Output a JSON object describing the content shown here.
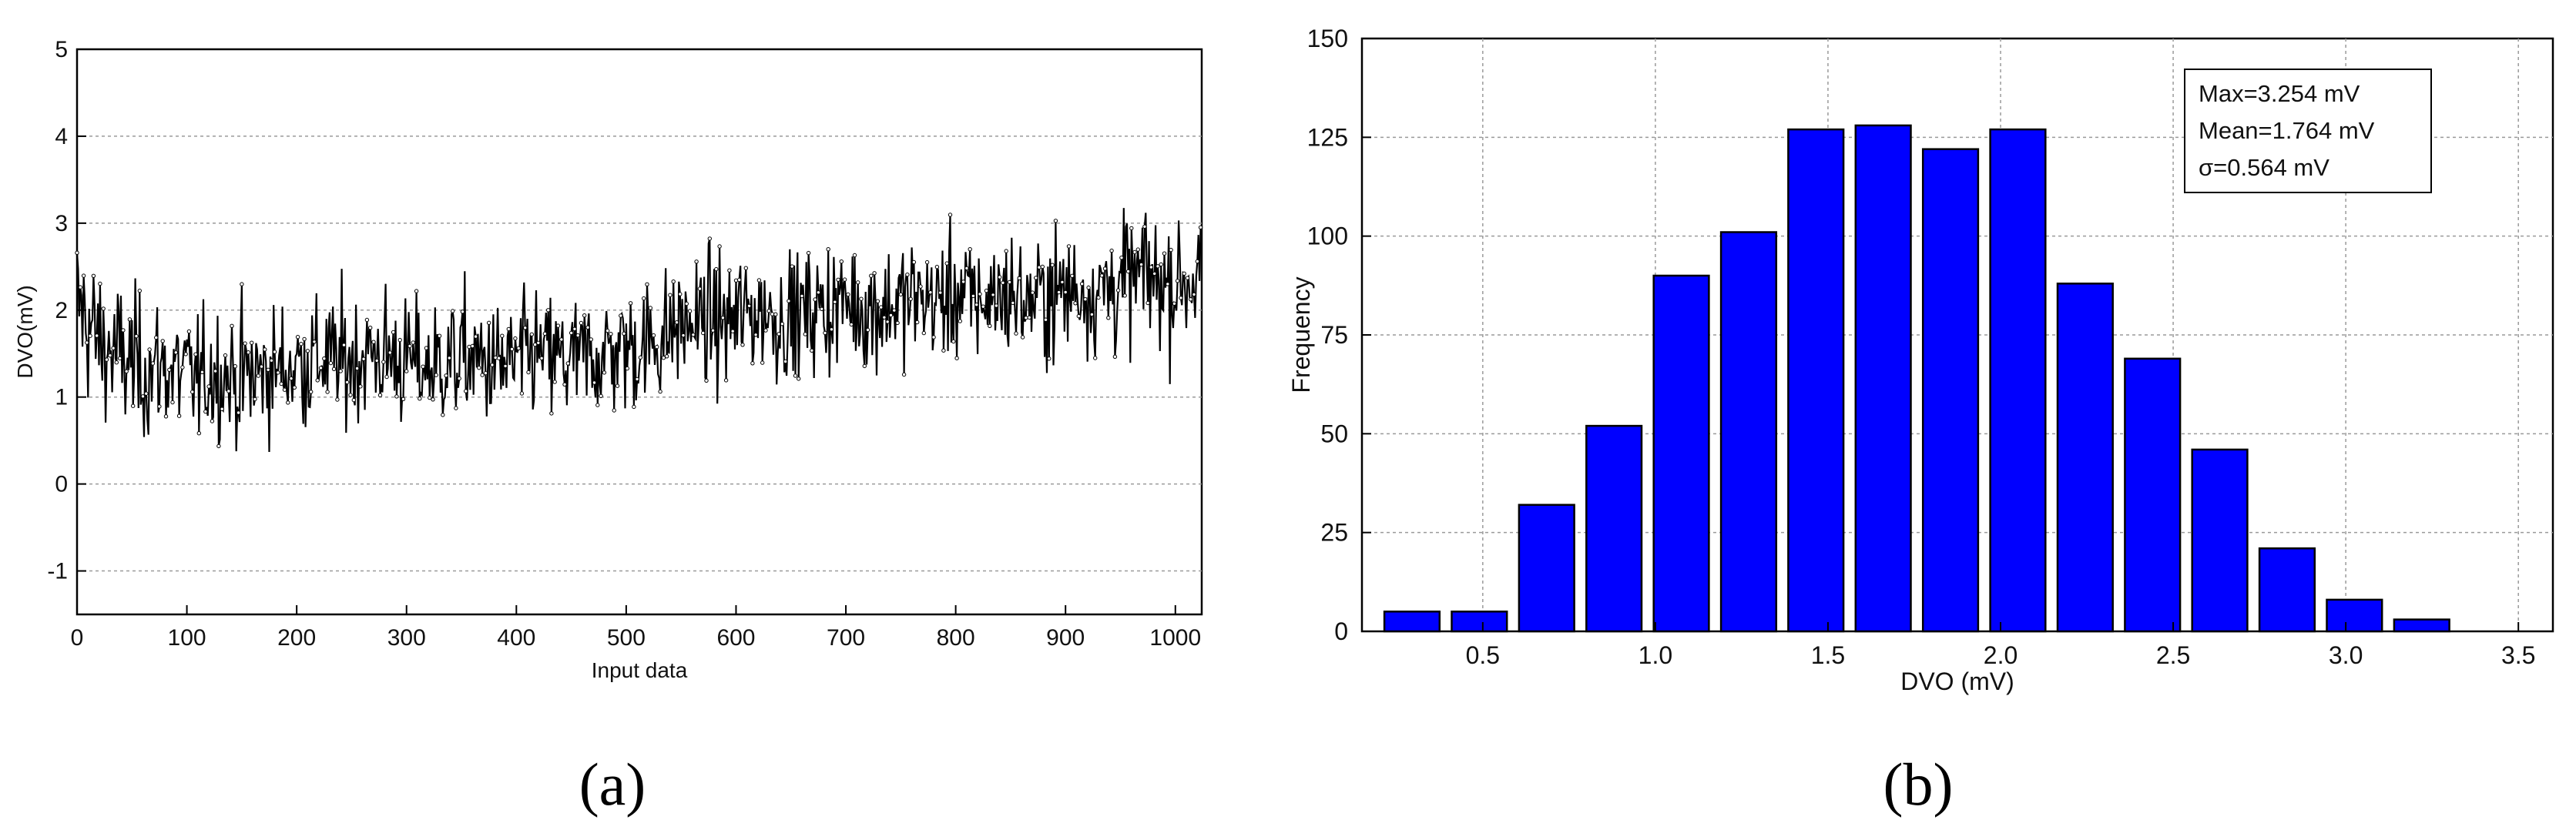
{
  "chart_data": [
    {
      "type": "line",
      "xlabel": "Input data",
      "ylabel": "DVO(mV)",
      "xlim": [
        0,
        1024
      ],
      "ylim": [
        -1.5,
        5
      ],
      "xticks": [
        "0",
        "100",
        "200",
        "300",
        "400",
        "500",
        "600",
        "700",
        "800",
        "900",
        "1000"
      ],
      "yticks": [
        "-1",
        "0",
        "1",
        "2",
        "3",
        "4",
        "5"
      ],
      "grid": "horizontal-dashed",
      "marker": "dot",
      "series": [
        {
          "x": [
            0,
            16,
            32,
            48,
            64,
            80,
            96,
            112,
            128,
            144,
            160,
            176,
            192,
            208,
            224,
            240,
            256,
            272,
            288,
            304,
            320,
            336,
            352,
            368,
            384,
            400,
            416,
            432,
            448,
            464,
            480,
            496,
            512,
            528,
            544,
            560,
            576,
            592,
            608,
            624,
            640,
            656,
            672,
            688,
            704,
            720,
            736,
            752,
            768,
            784,
            800,
            816,
            832,
            848,
            864,
            880,
            896,
            912,
            928,
            944,
            960,
            976,
            992,
            1008,
            1023
          ],
          "y": [
            2.1,
            1.7,
            1.5,
            1.4,
            1.3,
            1.35,
            1.25,
            1.2,
            1.3,
            1.2,
            1.25,
            1.3,
            1.35,
            1.4,
            1.45,
            1.4,
            1.45,
            1.5,
            1.45,
            1.4,
            1.35,
            1.4,
            1.45,
            1.4,
            1.35,
            1.4,
            1.5,
            1.45,
            1.4,
            1.45,
            1.5,
            1.55,
            1.6,
            1.65,
            1.8,
            1.85,
            1.9,
            1.85,
            1.95,
            2.0,
            1.9,
            1.95,
            2.0,
            2.05,
            2.1,
            2.0,
            2.05,
            2.1,
            2.15,
            2.1,
            2.2,
            2.1,
            2.15,
            2.2,
            2.1,
            2.15,
            2.2,
            2.25,
            2.2,
            2.3,
            2.35,
            2.4,
            2.3,
            2.35,
            2.4
          ],
          "spread": [
            0.7,
            0.75,
            0.7,
            0.7,
            0.65,
            0.65,
            0.65,
            0.6,
            0.6,
            0.65,
            0.65,
            0.6,
            0.6,
            0.65,
            0.6,
            0.65,
            0.6,
            0.65,
            0.65,
            0.6,
            0.6,
            0.6,
            0.65,
            0.6,
            0.6,
            0.6,
            0.6,
            0.6,
            0.6,
            0.6,
            0.6,
            0.6,
            0.65,
            0.6,
            0.6,
            0.6,
            0.6,
            0.65,
            0.6,
            0.6,
            0.6,
            0.6,
            0.6,
            0.6,
            0.6,
            0.6,
            0.6,
            0.6,
            0.6,
            0.6,
            0.6,
            0.6,
            0.6,
            0.6,
            0.6,
            0.6,
            0.6,
            0.6,
            0.6,
            0.65,
            0.65,
            0.65,
            0.6,
            0.65,
            0.65
          ]
        }
      ],
      "max": 3.25,
      "min": 0.3
    },
    {
      "type": "bar",
      "xlabel": "DVO (mV)",
      "ylabel": "Frequency",
      "xlim": [
        0.15,
        3.6
      ],
      "ylim": [
        0,
        150
      ],
      "xticks": [
        "0.5",
        "1.0",
        "1.5",
        "2.0",
        "2.5",
        "3.0",
        "3.5"
      ],
      "yticks": [
        "0",
        "25",
        "50",
        "75",
        "100",
        "125",
        "150"
      ],
      "grid": "dashed",
      "bar_color": "#0000ff",
      "bin_width": 0.195,
      "bin_centers": [
        0.295,
        0.49,
        0.685,
        0.88,
        1.075,
        1.27,
        1.465,
        1.66,
        1.855,
        2.05,
        2.245,
        2.44,
        2.635,
        2.83,
        3.025,
        3.22
      ],
      "values": [
        5,
        5,
        32,
        52,
        90,
        101,
        127,
        128,
        122,
        127,
        88,
        69,
        46,
        21,
        8,
        3
      ],
      "legend_box": [
        "Max=3.254 mV",
        "Mean=1.764 mV",
        "σ=0.564 mV"
      ],
      "legend_position": "top-right"
    }
  ],
  "captions": [
    "(a)",
    "(b)"
  ]
}
